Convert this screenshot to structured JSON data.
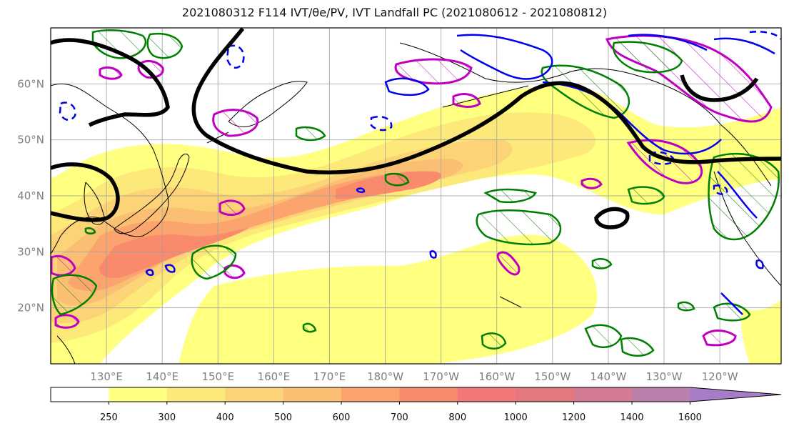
{
  "title": "2021080312 F114 IVT/θe/PV, IVT Landfall PC (2021080612 - 2021080812)",
  "map": {
    "latitude_labels": [
      "60°N",
      "50°N",
      "40°N",
      "30°N",
      "20°N"
    ],
    "latitudes": [
      60,
      50,
      40,
      30,
      20
    ],
    "longitude_labels": [
      "130°E",
      "140°E",
      "150°E",
      "160°E",
      "170°E",
      "180°W",
      "170°W",
      "160°W",
      "150°W",
      "140°W",
      "130°W",
      "120°W"
    ],
    "longitudes_east": [
      130,
      140,
      150,
      160,
      170,
      180,
      190,
      200,
      210,
      220,
      230,
      240
    ],
    "extent": {
      "lon_min": 120,
      "lon_max": 251,
      "lat_min": 10,
      "lat_max": 70
    },
    "gridlines": true
  },
  "colorbar": {
    "levels": [
      "250",
      "300",
      "400",
      "500",
      "600",
      "700",
      "800",
      "1000",
      "1200",
      "1400",
      "1600"
    ],
    "colors": [
      "#ffffff",
      "#ffff80",
      "#fde87a",
      "#fcd377",
      "#fbbf73",
      "#fba46d",
      "#f98a6b",
      "#f27878",
      "#e5777f",
      "#d27b92",
      "#bb7fac",
      "#a67cc6"
    ],
    "extend": "max"
  },
  "legend_colors": {
    "pv_contour": "#000000",
    "theta_e_solid": "#0000ee",
    "ivt_pc_green": "#008000",
    "ivt_pc_magenta": "#c000c0"
  }
}
